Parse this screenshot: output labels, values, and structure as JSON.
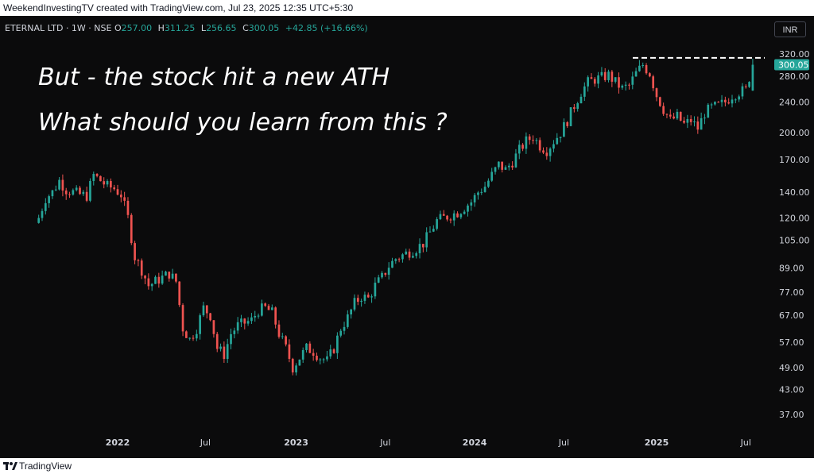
{
  "header": {
    "attribution": "WeekendInvestingTV created with TradingView.com, Jul 23, 2025 12:35 UTC+5:30"
  },
  "legend": {
    "symbol": "ETERNAL LTD · 1W · NSE",
    "o_label": "O",
    "o_value": "257.00",
    "h_label": "H",
    "h_value": "311.25",
    "l_label": "L",
    "l_value": "256.65",
    "c_label": "C",
    "c_value": "300.05",
    "change": "+42.85 (+16.66%)"
  },
  "currency": "INR",
  "annotations": {
    "line1": "But - the stock hit a new ATH",
    "line2": "What should you learn from this ?"
  },
  "footer": {
    "brand": "TradingView"
  },
  "colors": {
    "up": "#26a69a",
    "down": "#ef5350",
    "background": "#0b0b0c",
    "last_price_tag": "#26a69a"
  },
  "chart_data": {
    "type": "candlestick",
    "scale": "log",
    "timeframe": "1W",
    "y_ticks": [
      "320.00",
      "280.00",
      "240.00",
      "200.00",
      "170.00",
      "140.00",
      "120.00",
      "105.00",
      "89.00",
      "77.00",
      "67.00",
      "57.00",
      "49.00",
      "43.00",
      "37.00"
    ],
    "x_ticks": [
      {
        "label": "2022",
        "date": "2022-01-03",
        "year": true
      },
      {
        "label": "Jul",
        "date": "2022-07-01",
        "year": false
      },
      {
        "label": "2023",
        "date": "2023-01-02",
        "year": true
      },
      {
        "label": "Jul",
        "date": "2023-07-03",
        "year": false
      },
      {
        "label": "2024",
        "date": "2024-01-01",
        "year": true
      },
      {
        "label": "Jul",
        "date": "2024-07-01",
        "year": false
      },
      {
        "label": "2025",
        "date": "2025-01-06",
        "year": true
      },
      {
        "label": "Jul",
        "date": "2025-07-07",
        "year": false
      }
    ],
    "last_price": "300.05",
    "ath_level": 311.25,
    "start_date": "2021-07-26",
    "anchors": [
      [
        "2021-07-26",
        120
      ],
      [
        "2021-08-09",
        135
      ],
      [
        "2021-08-23",
        140
      ],
      [
        "2021-09-06",
        150
      ],
      [
        "2021-09-20",
        142
      ],
      [
        "2021-10-04",
        140
      ],
      [
        "2021-10-18",
        138
      ],
      [
        "2021-11-01",
        137
      ],
      [
        "2021-11-15",
        155
      ],
      [
        "2021-11-29",
        150
      ],
      [
        "2021-12-13",
        145
      ],
      [
        "2021-12-27",
        143
      ],
      [
        "2022-01-10",
        138
      ],
      [
        "2022-01-24",
        120
      ],
      [
        "2022-02-07",
        95
      ],
      [
        "2022-02-21",
        88
      ],
      [
        "2022-03-07",
        80
      ],
      [
        "2022-03-21",
        82
      ],
      [
        "2022-04-04",
        84
      ],
      [
        "2022-04-18",
        86
      ],
      [
        "2022-05-02",
        82
      ],
      [
        "2022-05-16",
        62
      ],
      [
        "2022-05-30",
        58
      ],
      [
        "2022-06-13",
        62
      ],
      [
        "2022-06-27",
        70
      ],
      [
        "2022-07-11",
        67
      ],
      [
        "2022-07-25",
        55
      ],
      [
        "2022-08-08",
        53
      ],
      [
        "2022-08-22",
        60
      ],
      [
        "2022-09-05",
        63
      ],
      [
        "2022-09-19",
        64
      ],
      [
        "2022-10-03",
        65
      ],
      [
        "2022-10-17",
        69
      ],
      [
        "2022-10-31",
        70
      ],
      [
        "2022-11-14",
        68
      ],
      [
        "2022-11-28",
        60
      ],
      [
        "2022-12-12",
        55
      ],
      [
        "2022-12-26",
        49
      ],
      [
        "2023-01-09",
        52
      ],
      [
        "2023-01-23",
        55
      ],
      [
        "2023-02-06",
        54
      ],
      [
        "2023-02-20",
        52
      ],
      [
        "2023-03-06",
        51
      ],
      [
        "2023-03-20",
        55
      ],
      [
        "2023-04-03",
        62
      ],
      [
        "2023-04-17",
        66
      ],
      [
        "2023-05-01",
        72
      ],
      [
        "2023-05-15",
        75
      ],
      [
        "2023-05-29",
        74
      ],
      [
        "2023-06-12",
        80
      ],
      [
        "2023-06-26",
        84
      ],
      [
        "2023-07-10",
        90
      ],
      [
        "2023-07-24",
        94
      ],
      [
        "2023-08-07",
        96
      ],
      [
        "2023-08-21",
        98
      ],
      [
        "2023-09-04",
        100
      ],
      [
        "2023-09-18",
        103
      ],
      [
        "2023-10-02",
        110
      ],
      [
        "2023-10-16",
        118
      ],
      [
        "2023-10-30",
        120
      ],
      [
        "2023-11-13",
        122
      ],
      [
        "2023-11-27",
        124
      ],
      [
        "2023-12-11",
        128
      ],
      [
        "2023-12-25",
        132
      ],
      [
        "2024-01-08",
        140
      ],
      [
        "2024-01-22",
        145
      ],
      [
        "2024-02-05",
        155
      ],
      [
        "2024-02-19",
        165
      ],
      [
        "2024-03-04",
        160
      ],
      [
        "2024-03-18",
        168
      ],
      [
        "2024-04-01",
        180
      ],
      [
        "2024-04-15",
        190
      ],
      [
        "2024-04-29",
        195
      ],
      [
        "2024-05-13",
        185
      ],
      [
        "2024-05-27",
        180
      ],
      [
        "2024-06-10",
        190
      ],
      [
        "2024-06-24",
        200
      ],
      [
        "2024-07-08",
        215
      ],
      [
        "2024-07-22",
        235
      ],
      [
        "2024-08-05",
        255
      ],
      [
        "2024-08-19",
        270
      ],
      [
        "2024-09-02",
        275
      ],
      [
        "2024-09-16",
        278
      ],
      [
        "2024-09-30",
        282
      ],
      [
        "2024-10-14",
        270
      ],
      [
        "2024-10-28",
        260
      ],
      [
        "2024-11-11",
        265
      ],
      [
        "2024-11-25",
        285
      ],
      [
        "2024-12-09",
        300
      ],
      [
        "2024-12-23",
        285
      ],
      [
        "2025-01-06",
        250
      ],
      [
        "2025-01-20",
        230
      ],
      [
        "2025-02-03",
        215
      ],
      [
        "2025-02-17",
        220
      ],
      [
        "2025-03-03",
        210
      ],
      [
        "2025-03-17",
        215
      ],
      [
        "2025-03-31",
        205
      ],
      [
        "2025-04-14",
        225
      ],
      [
        "2025-04-28",
        232
      ],
      [
        "2025-05-12",
        235
      ],
      [
        "2025-05-26",
        240
      ],
      [
        "2025-06-09",
        250
      ],
      [
        "2025-06-23",
        255
      ],
      [
        "2025-07-07",
        258
      ],
      [
        "2025-07-21",
        300.05
      ]
    ]
  }
}
